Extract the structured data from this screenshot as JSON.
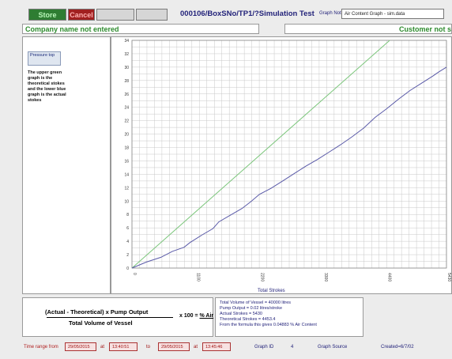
{
  "toolbar": {
    "store_label": "Store",
    "cancel_label": "Cancel",
    "blank1_label": "",
    "blank2_label": ""
  },
  "header": {
    "title": "000106/BoxSNo/TP1/?Simulation Test",
    "graph_note_label": "Graph Note",
    "graph_note_value": "Air Content Graph - sim.data"
  },
  "company_name": "Company name not entered",
  "customer_name": "Customer not s",
  "sidebar": {
    "tab_label": "Pressure top",
    "description": "The upper green graph is the theoretical stokes and the lower blue graph is the actual stokes"
  },
  "chart_data": {
    "type": "line",
    "xlabel": "Total Strokes",
    "xlim": [
      0,
      5430
    ],
    "ylim": [
      0,
      34
    ],
    "x_ticks": [
      "0",
      "1100",
      "2200",
      "3300",
      "4400",
      "5430"
    ],
    "y_ticks": [
      "0",
      "2",
      "4",
      "6",
      "8",
      "10",
      "12",
      "14",
      "16",
      "18",
      "20",
      "22",
      "24",
      "26",
      "28",
      "30",
      "32",
      "34"
    ],
    "grid": true,
    "series": [
      {
        "color": "#7cc67c",
        "x": [
          0,
          4450
        ],
        "y": [
          0,
          34
        ]
      },
      {
        "color": "#5a5aa8",
        "x": [
          0,
          250,
          500,
          700,
          900,
          1000,
          1200,
          1400,
          1500,
          1700,
          1900,
          2050,
          2200,
          2400,
          2600,
          2800,
          3000,
          3200,
          3400,
          3600,
          3800,
          4000,
          4200,
          4400,
          4600,
          4800,
          5000,
          5200,
          5300,
          5430
        ],
        "y": [
          0,
          0.9,
          1.6,
          2.5,
          3.1,
          3.8,
          4.9,
          5.9,
          6.9,
          7.9,
          8.9,
          9.9,
          11.0,
          11.9,
          13.0,
          14.1,
          15.2,
          16.2,
          17.3,
          18.4,
          19.6,
          20.9,
          22.5,
          23.8,
          25.2,
          26.5,
          27.6,
          28.7,
          29.3,
          30.0
        ]
      }
    ]
  },
  "formula": {
    "numerator": "(Actual - Theoretical) x Pump Output",
    "denominator": "Total Volume of Vessel",
    "multiplier": "x 100 = ",
    "result_label": "% Air"
  },
  "info": {
    "lines": [
      "Total Volume of Vessel = 40000 litres",
      "Pump Output = 0.02 litres/stroke",
      "Actual Strokes = 5430",
      "Theoretical Strokes = 4453.4",
      "From the formula this gives 0.04883 % Air Content"
    ]
  },
  "footer": {
    "time_range_label": "Time range from",
    "from_date": "29/05/2015",
    "from_at": "at",
    "from_time": "13:40:51",
    "to_label": "to",
    "to_date": "29/05/2015",
    "to_at": "at",
    "to_time": "13:45:46",
    "graph_id_label": "Graph ID",
    "graph_id_value": "4",
    "graph_source_label": "Graph Source",
    "created_label": "Created=6/7/02"
  },
  "colors": {
    "theoretical": "#7cc67c",
    "actual": "#5a5aa8",
    "title": "#23237a",
    "company": "#2e8b2e"
  }
}
